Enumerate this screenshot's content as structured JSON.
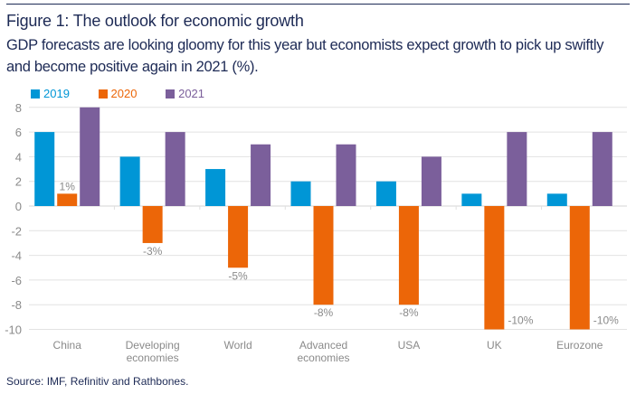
{
  "figure": {
    "title": "Figure 1: The outlook for economic growth",
    "subtitle": "GDP forecasts are looking gloomy for this year but economists expect growth to pick up swiftly and become positive again in 2021 (%).",
    "source": "Source: IMF, Refinitiv and Rathbones."
  },
  "chart_data": {
    "type": "bar",
    "title": "Figure 1: The outlook for economic growth",
    "xlabel": "",
    "ylabel": "",
    "ylim": [
      -10,
      8
    ],
    "yticks": [
      8,
      6,
      4,
      2,
      0,
      -2,
      -4,
      -6,
      -8,
      -10
    ],
    "grid": true,
    "legend_position": "top-left",
    "categories": [
      "China",
      "Developing economies",
      "World",
      "Advanced economies",
      "USA",
      "UK",
      "Eurozone"
    ],
    "category_lines": [
      [
        "China"
      ],
      [
        "Developing",
        "economies"
      ],
      [
        "World"
      ],
      [
        "Advanced",
        "economies"
      ],
      [
        "USA"
      ],
      [
        "UK"
      ],
      [
        "Eurozone"
      ]
    ],
    "series": [
      {
        "name": "2019",
        "color": "#0096d6",
        "values": [
          6,
          4,
          3,
          2,
          2,
          1,
          1
        ]
      },
      {
        "name": "2020",
        "color": "#ec6608",
        "values": [
          1,
          -3,
          -5,
          -8,
          -8,
          -10,
          -10
        ],
        "data_labels": [
          "1%",
          "-3%",
          "-5%",
          "-8%",
          "-8%",
          "-10%",
          "-10%"
        ]
      },
      {
        "name": "2021",
        "color": "#7b5f9b",
        "values": [
          8,
          6,
          5,
          5,
          4,
          6,
          6
        ]
      }
    ]
  }
}
